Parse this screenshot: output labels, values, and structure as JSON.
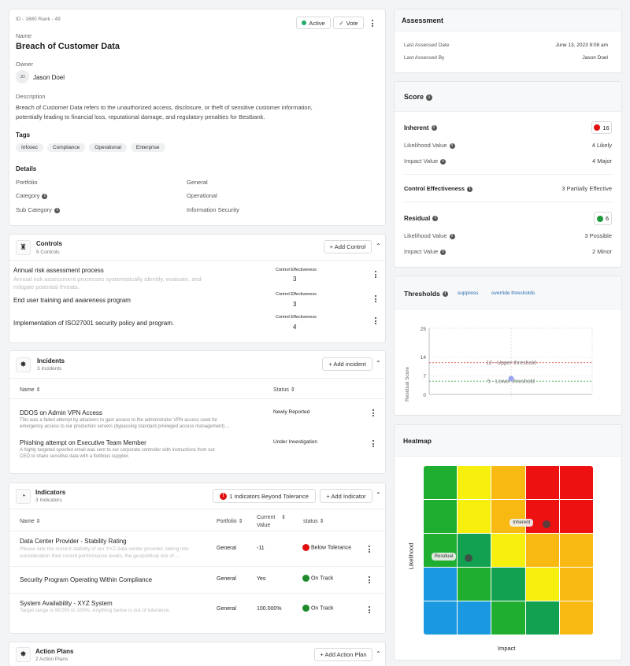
{
  "risk": {
    "id_rank": "ID - 1680  Rank - 49",
    "status_label": "Active",
    "vote_label": "Vote",
    "name_label": "Name",
    "name": "Breach of Customer Data",
    "owner_label": "Owner",
    "owner_initials": "JD",
    "owner_name": "Jason Doel",
    "description_label": "Description",
    "description_line1": "Breach of Customer Data refers to the unauthorized access, disclosure, or theft of sensitive customer information,",
    "description_line2": "potentially leading to financial loss, reputational damage, and regulatory penalties for Bestbank.",
    "tags_label": "Tags",
    "tags": [
      "Infosec",
      "Compliance",
      "Operational",
      "Enterprise"
    ],
    "details_label": "Details",
    "details": [
      {
        "label": "Portfolio",
        "value": "General"
      },
      {
        "label": "Category",
        "value": "Operational"
      },
      {
        "label": "Sub Category",
        "value": "Information Security"
      }
    ]
  },
  "controls": {
    "title": "Controls",
    "count": "5 Controls",
    "add_label": "+ Add Control",
    "col_label": "Control Effectiveness",
    "items": [
      {
        "title": "Annual risk assessment process",
        "desc1": "Annual risk assessment processes systematically identify, evaluate, and",
        "desc2": "mitigate potential threats.",
        "value": "3"
      },
      {
        "title": "End user training and awareness program",
        "value": "3"
      },
      {
        "title": "Implementation of ISO27001 security policy and program.",
        "value": "4"
      }
    ]
  },
  "incidents": {
    "title": "Incidents",
    "count": "3 Incidents",
    "add_label": "+ Add incident",
    "col_name": "Name",
    "col_status": "Status",
    "items": [
      {
        "title": "DDOS on Admin VPN Access",
        "desc1": "This was a failed attempt by attackers to gain access to the administrator VPN access used for",
        "desc2": "emergency access to our production servers (bypassing standard privileged access management) ...",
        "status": "Newly Reported"
      },
      {
        "title": "Phishing attempt on Executive Team Member",
        "desc1": "A highly targeted spoofed email was sent to our corporate controller with instructions from our",
        "desc2": "CEO to share sensitive data with a fictitious supplier.",
        "status": "Under Investigation"
      }
    ]
  },
  "indicators": {
    "title": "Indicators",
    "count": "3 Indicators",
    "beyond_label": "1 Indicators Beyond Tolerance",
    "add_label": "+ Add Indicator",
    "col_name": "Name",
    "col_portfolio": "Portfolio",
    "col_current1": "Current",
    "col_current2": "Value",
    "col_status": "status",
    "items": [
      {
        "title": "Data Center Provider - Stability Rating",
        "desc1": "Please rate the current stability of our XYZ data center provider, taking into",
        "desc2": "consideration their recent performance levels, the geopolitical risk of ...",
        "portfolio": "General",
        "value": "-11",
        "status": "Below Tolerance",
        "color": "#e01010"
      },
      {
        "title": "Security Program Operating Within Compliance",
        "portfolio": "General",
        "value": "Yes",
        "status": "On Track",
        "color": "#1e8a2a"
      },
      {
        "title": "System Availability - XYZ System",
        "desc1": "Target range is 99.5% to 100%. Anything below is out of tolerance.",
        "portfolio": "General",
        "value": "100.000%",
        "status": "On Track",
        "color": "#1e8a2a"
      }
    ]
  },
  "action_plans": {
    "title": "Action Plans",
    "count": "2 Action Plans",
    "add_label": "+ Add Action Plan"
  },
  "assessment": {
    "title": "Assessment",
    "last_date_label": "Last Assessed Date",
    "last_date": "June 13, 2023 9:08 am",
    "last_by_label": "Last Assessed By",
    "last_by": "Jason Doel"
  },
  "score": {
    "title": "Score",
    "inherent_label": "Inherent",
    "inherent_value": "16",
    "inherent_color": "#e01010",
    "inh_likelihood_label": "Likelihood Value",
    "inh_likelihood": "4 Likely",
    "inh_impact_label": "Impact Value",
    "inh_impact": "4 Major",
    "ce_label": "Control Effectiveness",
    "ce_value": "3 Partially Effective",
    "residual_label": "Residual",
    "residual_value": "6",
    "residual_color": "#1e9a3a",
    "res_likelihood_label": "Likelihood Value",
    "res_likelihood": "3 Possible",
    "res_impact_label": "Impact Value",
    "res_impact": "2 Minor"
  },
  "thresholds": {
    "title": "Thresholds",
    "suppress_label": "suppress",
    "override_label": "override thresholds",
    "chart_data": {
      "type": "scatter",
      "ylabel": "Residual Score",
      "ylim": [
        0,
        25
      ],
      "yticks": [
        "25",
        "14",
        "7",
        "0"
      ],
      "upper_label": "12 - Upper threshold",
      "upper_value": 12,
      "lower_label": "5 - Lower threshold",
      "lower_value": 5,
      "point_value": 6
    }
  },
  "heatmap": {
    "title": "Heatmap",
    "xlabel": "Impact",
    "ylabel": "Likelihood",
    "inherent_label": "Inherent",
    "residual_label": "Residual",
    "inherent_cell": {
      "likelihood": 4,
      "impact": 4
    },
    "residual_cell": {
      "likelihood": 3,
      "impact": 2
    },
    "grid": [
      [
        "#1fae2f",
        "#f7ef0e",
        "#f9b913",
        "#ee1111",
        "#ee1111"
      ],
      [
        "#1fae2f",
        "#f7ef0e",
        "#f9b913",
        "#ee1111",
        "#ee1111"
      ],
      [
        "#1fae2f",
        "#12a150",
        "#f7ef0e",
        "#f9b913",
        "#f9b913"
      ],
      [
        "#1a98e0",
        "#1fae2f",
        "#12a150",
        "#f7ef0e",
        "#f9b913"
      ],
      [
        "#1a98e0",
        "#1a98e0",
        "#1fae2f",
        "#12a150",
        "#f9b913"
      ]
    ]
  }
}
